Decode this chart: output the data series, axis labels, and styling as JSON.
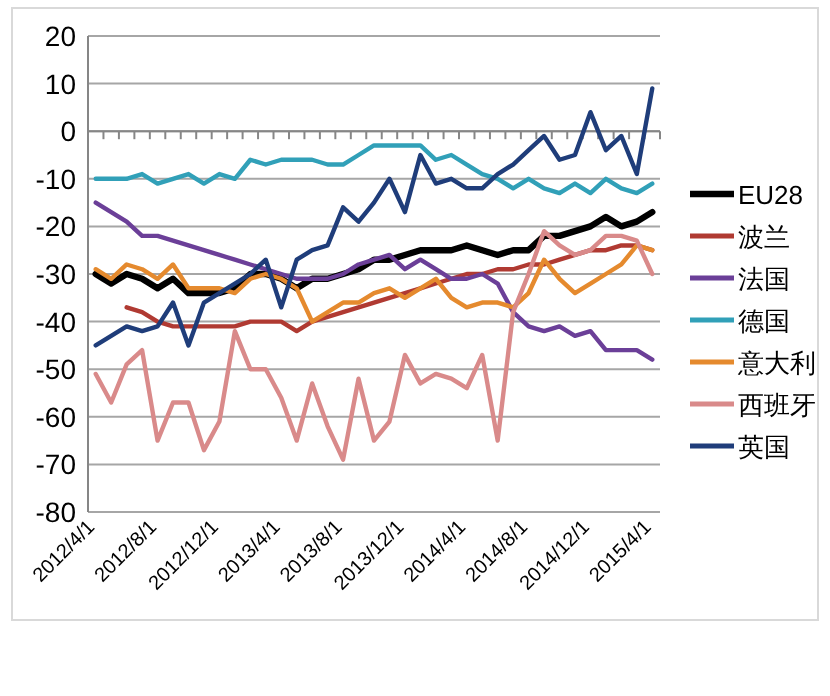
{
  "chart_data": {
    "type": "line",
    "categories": [
      "2012/4/1",
      null,
      null,
      null,
      "2012/8/1",
      null,
      null,
      null,
      "2012/12/1",
      null,
      null,
      null,
      "2013/4/1",
      null,
      null,
      null,
      "2013/8/1",
      null,
      null,
      null,
      "2013/12/1",
      null,
      null,
      null,
      "2014/4/1",
      null,
      null,
      null,
      "2014/8/1",
      null,
      null,
      null,
      "2014/12/1",
      null,
      null,
      null,
      "2015/4/1"
    ],
    "series": [
      {
        "name": "EU28",
        "color": "#000000",
        "values": [
          -30,
          -32,
          -30,
          -31,
          -33,
          -31,
          -34,
          -34,
          -34,
          -33,
          -30,
          -30,
          -31,
          -33,
          -31,
          -31,
          -30,
          -29,
          -27,
          -27,
          -26,
          -25,
          -25,
          -25,
          -24,
          -25,
          -26,
          -25,
          -25,
          -22,
          -22,
          -21,
          -20,
          -18,
          -20,
          -19,
          -17
        ]
      },
      {
        "name": "波兰",
        "color": "#b03a32",
        "values": [
          null,
          null,
          -37,
          -38,
          -40,
          -41,
          -41,
          -41,
          -41,
          -41,
          -40,
          -40,
          -40,
          -42,
          -40,
          -39,
          -38,
          -37,
          -36,
          -35,
          -34,
          -33,
          -32,
          -31,
          -30,
          -30,
          -29,
          -29,
          -28,
          -28,
          -27,
          -26,
          -25,
          -25,
          -24,
          -24,
          -25
        ]
      },
      {
        "name": "法国",
        "color": "#6b3f98",
        "values": [
          -15,
          -17,
          -19,
          -22,
          -22,
          -23,
          -24,
          -25,
          -26,
          -27,
          -28,
          -29,
          -30,
          -31,
          -31,
          -31,
          -30,
          -28,
          -27,
          -26,
          -29,
          -27,
          -29,
          -31,
          -31,
          -30,
          -32,
          -38,
          -41,
          -42,
          -41,
          -43,
          -42,
          -46,
          -46,
          -46,
          -48
        ]
      },
      {
        "name": "德国",
        "color": "#31a0b8",
        "values": [
          -10,
          -10,
          -10,
          -9,
          -11,
          -10,
          -9,
          -11,
          -9,
          -10,
          -6,
          -7,
          -6,
          -6,
          -6,
          -7,
          -7,
          -5,
          -3,
          -3,
          -3,
          -3,
          -6,
          -5,
          -7,
          -9,
          -10,
          -12,
          -10,
          -12,
          -13,
          -11,
          -13,
          -10,
          -12,
          -13,
          -11
        ]
      },
      {
        "name": "意大利",
        "color": "#e58a2e",
        "values": [
          -29,
          -31,
          -28,
          -29,
          -31,
          -28,
          -33,
          -33,
          -33,
          -34,
          -31,
          -30,
          -31,
          -33,
          -40,
          -38,
          -36,
          -36,
          -34,
          -33,
          -35,
          -33,
          -31,
          -35,
          -37,
          -36,
          -36,
          -37,
          -34,
          -27,
          -31,
          -34,
          -32,
          -30,
          -28,
          -24,
          -25
        ]
      },
      {
        "name": "西班牙",
        "color": "#d98a8a",
        "values": [
          -51,
          -57,
          -49,
          -46,
          -65,
          -57,
          -57,
          -67,
          -61,
          -42,
          -50,
          -50,
          -56,
          -65,
          -53,
          -62,
          -69,
          -52,
          -65,
          -61,
          -47,
          -53,
          -51,
          -52,
          -54,
          -47,
          -65,
          -38,
          -30,
          -21,
          -24,
          -26,
          -25,
          -22,
          -22,
          -23,
          -30
        ]
      },
      {
        "name": "英国",
        "color": "#1f3d7a",
        "values": [
          -45,
          -43,
          -41,
          -42,
          -41,
          -36,
          -45,
          -36,
          -34,
          -32,
          -30,
          -27,
          -37,
          -27,
          -25,
          -24,
          -16,
          -19,
          -15,
          -10,
          -17,
          -5,
          -11,
          -10,
          -12,
          -12,
          -9,
          -7,
          -4,
          -1,
          -6,
          -5,
          4,
          -4,
          -1,
          -9,
          9
        ]
      }
    ],
    "ylim": [
      -80,
      20
    ],
    "yticks": [
      -80,
      -70,
      -60,
      -50,
      -40,
      -30,
      -20,
      -10,
      0,
      10,
      20
    ],
    "grid": "y",
    "legend": "right",
    "marker": "none"
  }
}
